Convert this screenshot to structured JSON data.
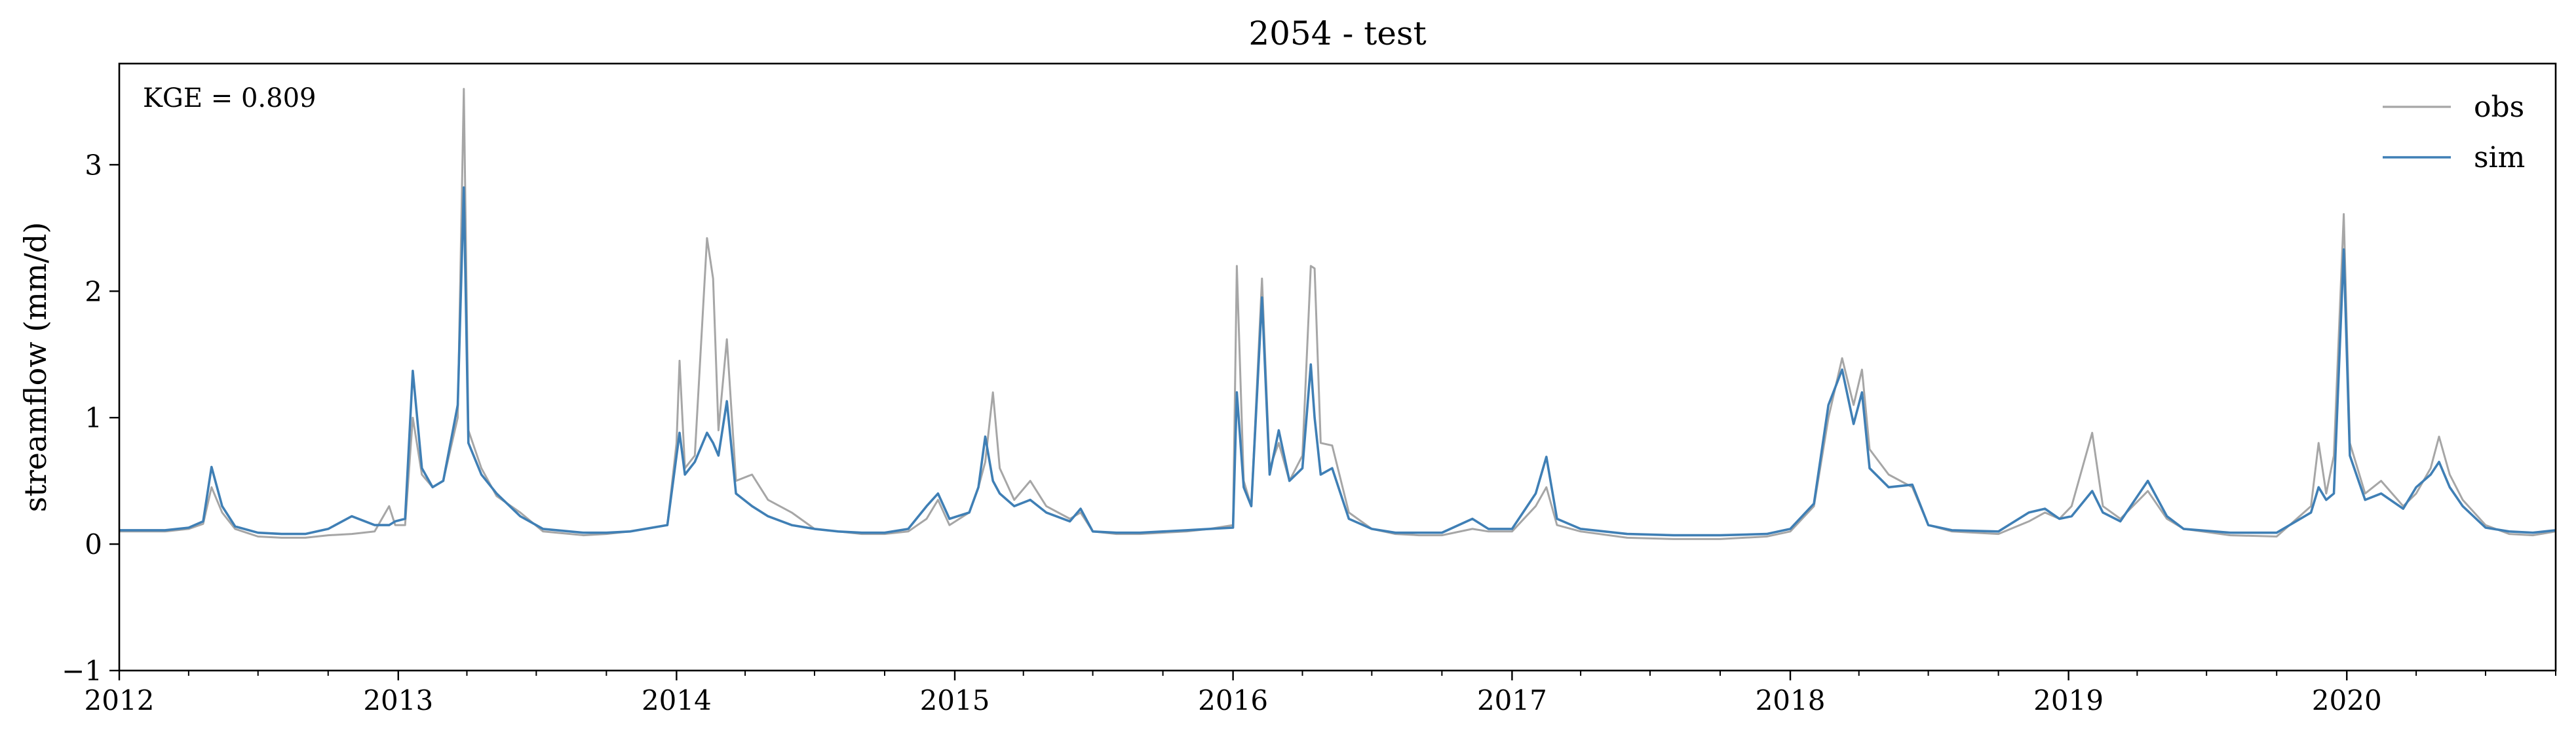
{
  "chart_data": {
    "type": "line",
    "title": "2054 - test",
    "xlabel": "",
    "ylabel": "streamflow (mm/d)",
    "xlim": [
      "2012-01-01",
      "2020-10-01"
    ],
    "ylim": [
      -1,
      3.8
    ],
    "x_ticks": [
      "2012",
      "2013",
      "2014",
      "2015",
      "2016",
      "2017",
      "2018",
      "2019",
      "2020"
    ],
    "y_ticks": [
      -1,
      0,
      1,
      2,
      3
    ],
    "y_tick_labels": [
      "−1",
      "0",
      "1",
      "2",
      "3"
    ],
    "grid": false,
    "legend": "top-right",
    "annotation": "KGE = 0.809",
    "series": [
      {
        "name": "obs",
        "color": "#a6a6a6",
        "points": [
          [
            "2012-01-01",
            0.1
          ],
          [
            "2012-02-01",
            0.1
          ],
          [
            "2012-03-01",
            0.1
          ],
          [
            "2012-04-01",
            0.12
          ],
          [
            "2012-04-20",
            0.16
          ],
          [
            "2012-05-01",
            0.45
          ],
          [
            "2012-05-15",
            0.25
          ],
          [
            "2012-06-01",
            0.12
          ],
          [
            "2012-07-01",
            0.06
          ],
          [
            "2012-08-01",
            0.05
          ],
          [
            "2012-09-01",
            0.05
          ],
          [
            "2012-10-01",
            0.07
          ],
          [
            "2012-11-01",
            0.08
          ],
          [
            "2012-12-01",
            0.1
          ],
          [
            "2012-12-20",
            0.3
          ],
          [
            "2012-12-28",
            0.15
          ],
          [
            "2013-01-10",
            0.15
          ],
          [
            "2013-01-20",
            1.0
          ],
          [
            "2013-02-01",
            0.55
          ],
          [
            "2013-02-15",
            0.45
          ],
          [
            "2013-03-01",
            0.5
          ],
          [
            "2013-03-20",
            1.0
          ],
          [
            "2013-03-28",
            3.6
          ],
          [
            "2013-04-03",
            0.9
          ],
          [
            "2013-04-20",
            0.6
          ],
          [
            "2013-05-10",
            0.38
          ],
          [
            "2013-06-10",
            0.25
          ],
          [
            "2013-07-10",
            0.1
          ],
          [
            "2013-09-01",
            0.07
          ],
          [
            "2013-10-01",
            0.08
          ],
          [
            "2013-11-01",
            0.1
          ],
          [
            "2013-12-20",
            0.15
          ],
          [
            "2014-01-01",
            0.8
          ],
          [
            "2014-01-05",
            1.45
          ],
          [
            "2014-01-12",
            0.6
          ],
          [
            "2014-01-25",
            0.7
          ],
          [
            "2014-02-10",
            2.42
          ],
          [
            "2014-02-18",
            2.1
          ],
          [
            "2014-02-25",
            0.9
          ],
          [
            "2014-03-08",
            1.62
          ],
          [
            "2014-03-20",
            0.5
          ],
          [
            "2014-04-10",
            0.55
          ],
          [
            "2014-05-01",
            0.35
          ],
          [
            "2014-06-01",
            0.25
          ],
          [
            "2014-07-01",
            0.12
          ],
          [
            "2014-08-01",
            0.1
          ],
          [
            "2014-09-01",
            0.08
          ],
          [
            "2014-10-01",
            0.08
          ],
          [
            "2014-11-01",
            0.1
          ],
          [
            "2014-11-25",
            0.2
          ],
          [
            "2014-12-10",
            0.35
          ],
          [
            "2014-12-25",
            0.15
          ],
          [
            "2015-01-20",
            0.25
          ],
          [
            "2015-02-01",
            0.45
          ],
          [
            "2015-02-10",
            0.65
          ],
          [
            "2015-02-20",
            1.2
          ],
          [
            "2015-03-01",
            0.6
          ],
          [
            "2015-03-20",
            0.35
          ],
          [
            "2015-04-10",
            0.5
          ],
          [
            "2015-05-01",
            0.3
          ],
          [
            "2015-06-01",
            0.2
          ],
          [
            "2015-06-15",
            0.25
          ],
          [
            "2015-07-01",
            0.1
          ],
          [
            "2015-08-01",
            0.08
          ],
          [
            "2015-09-01",
            0.08
          ],
          [
            "2015-10-01",
            0.09
          ],
          [
            "2015-11-01",
            0.1
          ],
          [
            "2015-12-01",
            0.12
          ],
          [
            "2016-01-01",
            0.15
          ],
          [
            "2016-01-06",
            2.2
          ],
          [
            "2016-01-15",
            0.5
          ],
          [
            "2016-01-25",
            0.3
          ],
          [
            "2016-02-08",
            2.1
          ],
          [
            "2016-02-18",
            0.6
          ],
          [
            "2016-03-01",
            0.8
          ],
          [
            "2016-03-15",
            0.5
          ],
          [
            "2016-04-01",
            0.7
          ],
          [
            "2016-04-12",
            2.2
          ],
          [
            "2016-04-17",
            2.18
          ],
          [
            "2016-04-25",
            0.8
          ],
          [
            "2016-05-10",
            0.78
          ],
          [
            "2016-06-01",
            0.25
          ],
          [
            "2016-07-01",
            0.12
          ],
          [
            "2016-08-01",
            0.08
          ],
          [
            "2016-09-01",
            0.07
          ],
          [
            "2016-10-01",
            0.07
          ],
          [
            "2016-11-10",
            0.12
          ],
          [
            "2016-12-01",
            0.1
          ],
          [
            "2017-01-01",
            0.1
          ],
          [
            "2017-02-01",
            0.3
          ],
          [
            "2017-02-15",
            0.45
          ],
          [
            "2017-03-01",
            0.15
          ],
          [
            "2017-04-01",
            0.1
          ],
          [
            "2017-06-01",
            0.05
          ],
          [
            "2017-08-01",
            0.04
          ],
          [
            "2017-10-01",
            0.04
          ],
          [
            "2017-12-01",
            0.06
          ],
          [
            "2018-01-01",
            0.1
          ],
          [
            "2018-02-01",
            0.3
          ],
          [
            "2018-02-20",
            1.0
          ],
          [
            "2018-03-10",
            1.47
          ],
          [
            "2018-03-25",
            1.1
          ],
          [
            "2018-04-05",
            1.38
          ],
          [
            "2018-04-15",
            0.75
          ],
          [
            "2018-05-10",
            0.55
          ],
          [
            "2018-06-10",
            0.45
          ],
          [
            "2018-07-01",
            0.15
          ],
          [
            "2018-08-01",
            0.1
          ],
          [
            "2018-10-01",
            0.08
          ],
          [
            "2018-11-10",
            0.18
          ],
          [
            "2018-12-01",
            0.25
          ],
          [
            "2018-12-20",
            0.2
          ],
          [
            "2019-01-05",
            0.3
          ],
          [
            "2019-02-01",
            0.88
          ],
          [
            "2019-02-15",
            0.3
          ],
          [
            "2019-03-10",
            0.2
          ],
          [
            "2019-04-15",
            0.42
          ],
          [
            "2019-05-10",
            0.2
          ],
          [
            "2019-06-01",
            0.12
          ],
          [
            "2019-08-01",
            0.07
          ],
          [
            "2019-10-01",
            0.06
          ],
          [
            "2019-11-15",
            0.3
          ],
          [
            "2019-11-25",
            0.8
          ],
          [
            "2019-12-05",
            0.4
          ],
          [
            "2019-12-15",
            0.7
          ],
          [
            "2019-12-28",
            2.61
          ],
          [
            "2020-01-05",
            0.8
          ],
          [
            "2020-01-25",
            0.4
          ],
          [
            "2020-02-15",
            0.5
          ],
          [
            "2020-03-15",
            0.3
          ],
          [
            "2020-04-01",
            0.4
          ],
          [
            "2020-04-20",
            0.6
          ],
          [
            "2020-05-01",
            0.85
          ],
          [
            "2020-05-15",
            0.55
          ],
          [
            "2020-06-01",
            0.35
          ],
          [
            "2020-07-01",
            0.15
          ],
          [
            "2020-08-01",
            0.08
          ],
          [
            "2020-09-01",
            0.07
          ],
          [
            "2020-10-01",
            0.1
          ]
        ]
      },
      {
        "name": "sim",
        "color": "#3f7fb5",
        "points": [
          [
            "2012-01-01",
            0.11
          ],
          [
            "2012-02-01",
            0.11
          ],
          [
            "2012-03-01",
            0.11
          ],
          [
            "2012-04-01",
            0.13
          ],
          [
            "2012-04-20",
            0.18
          ],
          [
            "2012-05-01",
            0.61
          ],
          [
            "2012-05-15",
            0.3
          ],
          [
            "2012-06-01",
            0.14
          ],
          [
            "2012-07-01",
            0.09
          ],
          [
            "2012-08-01",
            0.08
          ],
          [
            "2012-09-01",
            0.08
          ],
          [
            "2012-10-01",
            0.12
          ],
          [
            "2012-11-01",
            0.22
          ],
          [
            "2012-12-01",
            0.15
          ],
          [
            "2012-12-20",
            0.15
          ],
          [
            "2012-12-28",
            0.18
          ],
          [
            "2013-01-10",
            0.2
          ],
          [
            "2013-01-20",
            1.37
          ],
          [
            "2013-02-01",
            0.6
          ],
          [
            "2013-02-15",
            0.45
          ],
          [
            "2013-03-01",
            0.5
          ],
          [
            "2013-03-20",
            1.1
          ],
          [
            "2013-03-28",
            2.82
          ],
          [
            "2013-04-03",
            0.8
          ],
          [
            "2013-04-20",
            0.55
          ],
          [
            "2013-05-10",
            0.4
          ],
          [
            "2013-06-10",
            0.22
          ],
          [
            "2013-07-10",
            0.12
          ],
          [
            "2013-09-01",
            0.09
          ],
          [
            "2013-10-01",
            0.09
          ],
          [
            "2013-11-01",
            0.1
          ],
          [
            "2013-12-20",
            0.15
          ],
          [
            "2014-01-01",
            0.7
          ],
          [
            "2014-01-05",
            0.88
          ],
          [
            "2014-01-12",
            0.55
          ],
          [
            "2014-01-25",
            0.65
          ],
          [
            "2014-02-10",
            0.88
          ],
          [
            "2014-02-18",
            0.8
          ],
          [
            "2014-02-25",
            0.7
          ],
          [
            "2014-03-08",
            1.13
          ],
          [
            "2014-03-20",
            0.4
          ],
          [
            "2014-04-10",
            0.3
          ],
          [
            "2014-05-01",
            0.22
          ],
          [
            "2014-06-01",
            0.15
          ],
          [
            "2014-07-01",
            0.12
          ],
          [
            "2014-08-01",
            0.1
          ],
          [
            "2014-09-01",
            0.09
          ],
          [
            "2014-10-01",
            0.09
          ],
          [
            "2014-11-01",
            0.12
          ],
          [
            "2014-11-25",
            0.3
          ],
          [
            "2014-12-10",
            0.4
          ],
          [
            "2014-12-25",
            0.2
          ],
          [
            "2015-01-20",
            0.25
          ],
          [
            "2015-02-01",
            0.45
          ],
          [
            "2015-02-10",
            0.85
          ],
          [
            "2015-02-20",
            0.5
          ],
          [
            "2015-03-01",
            0.4
          ],
          [
            "2015-03-20",
            0.3
          ],
          [
            "2015-04-10",
            0.35
          ],
          [
            "2015-05-01",
            0.25
          ],
          [
            "2015-06-01",
            0.18
          ],
          [
            "2015-06-15",
            0.28
          ],
          [
            "2015-07-01",
            0.1
          ],
          [
            "2015-08-01",
            0.09
          ],
          [
            "2015-09-01",
            0.09
          ],
          [
            "2015-10-01",
            0.1
          ],
          [
            "2015-11-01",
            0.11
          ],
          [
            "2015-12-01",
            0.12
          ],
          [
            "2016-01-01",
            0.13
          ],
          [
            "2016-01-06",
            1.2
          ],
          [
            "2016-01-15",
            0.45
          ],
          [
            "2016-01-25",
            0.3
          ],
          [
            "2016-02-08",
            1.95
          ],
          [
            "2016-02-18",
            0.55
          ],
          [
            "2016-03-01",
            0.9
          ],
          [
            "2016-03-15",
            0.5
          ],
          [
            "2016-04-01",
            0.6
          ],
          [
            "2016-04-12",
            1.42
          ],
          [
            "2016-04-17",
            1.0
          ],
          [
            "2016-04-25",
            0.55
          ],
          [
            "2016-05-10",
            0.6
          ],
          [
            "2016-06-01",
            0.2
          ],
          [
            "2016-07-01",
            0.12
          ],
          [
            "2016-08-01",
            0.09
          ],
          [
            "2016-09-01",
            0.09
          ],
          [
            "2016-10-01",
            0.09
          ],
          [
            "2016-11-10",
            0.2
          ],
          [
            "2016-12-01",
            0.12
          ],
          [
            "2017-01-01",
            0.12
          ],
          [
            "2017-02-01",
            0.4
          ],
          [
            "2017-02-15",
            0.69
          ],
          [
            "2017-03-01",
            0.2
          ],
          [
            "2017-04-01",
            0.12
          ],
          [
            "2017-06-01",
            0.08
          ],
          [
            "2017-08-01",
            0.07
          ],
          [
            "2017-10-01",
            0.07
          ],
          [
            "2017-12-01",
            0.08
          ],
          [
            "2018-01-01",
            0.12
          ],
          [
            "2018-02-01",
            0.32
          ],
          [
            "2018-02-20",
            1.1
          ],
          [
            "2018-03-10",
            1.38
          ],
          [
            "2018-03-25",
            0.95
          ],
          [
            "2018-04-05",
            1.2
          ],
          [
            "2018-04-15",
            0.6
          ],
          [
            "2018-05-10",
            0.45
          ],
          [
            "2018-06-10",
            0.47
          ],
          [
            "2018-07-01",
            0.15
          ],
          [
            "2018-08-01",
            0.11
          ],
          [
            "2018-10-01",
            0.1
          ],
          [
            "2018-11-10",
            0.25
          ],
          [
            "2018-12-01",
            0.28
          ],
          [
            "2018-12-20",
            0.2
          ],
          [
            "2019-01-05",
            0.22
          ],
          [
            "2019-02-01",
            0.42
          ],
          [
            "2019-02-15",
            0.25
          ],
          [
            "2019-03-10",
            0.18
          ],
          [
            "2019-04-15",
            0.5
          ],
          [
            "2019-05-10",
            0.22
          ],
          [
            "2019-06-01",
            0.12
          ],
          [
            "2019-08-01",
            0.09
          ],
          [
            "2019-10-01",
            0.09
          ],
          [
            "2019-11-15",
            0.25
          ],
          [
            "2019-11-25",
            0.45
          ],
          [
            "2019-12-05",
            0.35
          ],
          [
            "2019-12-15",
            0.4
          ],
          [
            "2019-12-28",
            2.33
          ],
          [
            "2020-01-05",
            0.7
          ],
          [
            "2020-01-25",
            0.35
          ],
          [
            "2020-02-15",
            0.4
          ],
          [
            "2020-03-15",
            0.28
          ],
          [
            "2020-04-01",
            0.45
          ],
          [
            "2020-04-20",
            0.55
          ],
          [
            "2020-05-01",
            0.65
          ],
          [
            "2020-05-15",
            0.45
          ],
          [
            "2020-06-01",
            0.3
          ],
          [
            "2020-07-01",
            0.13
          ],
          [
            "2020-08-01",
            0.1
          ],
          [
            "2020-09-01",
            0.09
          ],
          [
            "2020-10-01",
            0.11
          ]
        ]
      }
    ]
  }
}
